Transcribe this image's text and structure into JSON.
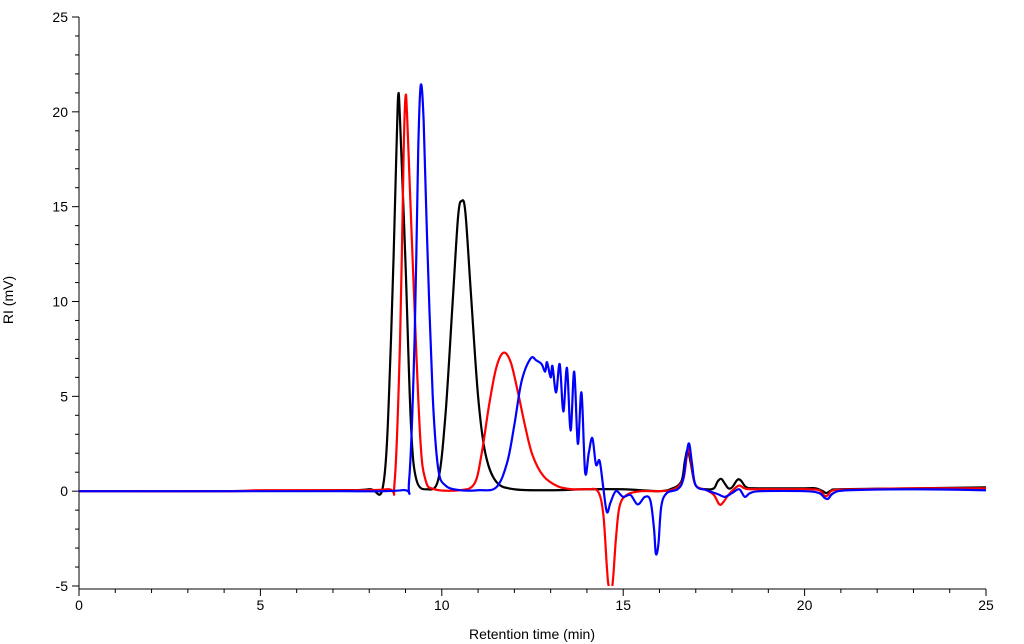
{
  "chart_data": {
    "type": "line",
    "title": "",
    "xlabel": "Retention time (min)",
    "ylabel": "RI (mV)",
    "xlim": [
      0,
      25
    ],
    "ylim": [
      -5,
      25
    ],
    "xticks": [
      0,
      5,
      10,
      15,
      20,
      25
    ],
    "yticks": [
      -5,
      0,
      5,
      10,
      15,
      20,
      25
    ],
    "grid": false,
    "legend": "none",
    "series": [
      {
        "color": "#000000",
        "points": [
          [
            0,
            0
          ],
          [
            4,
            0
          ],
          [
            7,
            0.05
          ],
          [
            8,
            0.1
          ],
          [
            8.4,
            0.5
          ],
          [
            8.6,
            8
          ],
          [
            8.75,
            18
          ],
          [
            8.8,
            20.9
          ],
          [
            8.85,
            19.5
          ],
          [
            9,
            12
          ],
          [
            9.15,
            3.5
          ],
          [
            9.3,
            0.6
          ],
          [
            9.6,
            0.1
          ],
          [
            9.9,
            0.6
          ],
          [
            10.1,
            4
          ],
          [
            10.3,
            10
          ],
          [
            10.45,
            14.5
          ],
          [
            10.55,
            15.3
          ],
          [
            10.65,
            14.7
          ],
          [
            10.8,
            10.5
          ],
          [
            11,
            5
          ],
          [
            11.2,
            2
          ],
          [
            11.5,
            0.5
          ],
          [
            12,
            0.1
          ],
          [
            13,
            0.05
          ],
          [
            14,
            0.1
          ],
          [
            15,
            0.1
          ],
          [
            15.5,
            0.05
          ],
          [
            16,
            0.0
          ],
          [
            16.3,
            0.1
          ],
          [
            16.6,
            0.5
          ],
          [
            16.7,
            1.6
          ],
          [
            16.78,
            2.2
          ],
          [
            16.86,
            1.5
          ],
          [
            17,
            0.3
          ],
          [
            17.3,
            0.1
          ],
          [
            17.5,
            0.15
          ],
          [
            17.6,
            0.5
          ],
          [
            17.7,
            0.65
          ],
          [
            17.8,
            0.4
          ],
          [
            17.9,
            0.15
          ],
          [
            18,
            0.2
          ],
          [
            18.15,
            0.6
          ],
          [
            18.25,
            0.55
          ],
          [
            18.4,
            0.2
          ],
          [
            18.7,
            0.15
          ],
          [
            20,
            0.15
          ],
          [
            20.3,
            0.15
          ],
          [
            20.5,
            0.0
          ],
          [
            20.6,
            -0.1
          ],
          [
            20.75,
            0.05
          ],
          [
            21,
            0.1
          ],
          [
            23,
            0.15
          ],
          [
            25,
            0.2
          ]
        ]
      },
      {
        "color": "#ff0000",
        "points": [
          [
            0,
            0
          ],
          [
            4,
            0
          ],
          [
            5,
            0.05
          ],
          [
            7,
            0.05
          ],
          [
            8.5,
            0.1
          ],
          [
            8.7,
            0.5
          ],
          [
            8.85,
            8
          ],
          [
            8.95,
            18
          ],
          [
            9.0,
            20.8
          ],
          [
            9.05,
            19.5
          ],
          [
            9.2,
            12
          ],
          [
            9.4,
            3
          ],
          [
            9.55,
            0.6
          ],
          [
            9.8,
            0.1
          ],
          [
            10.5,
            0.05
          ],
          [
            10.9,
            0.4
          ],
          [
            11.1,
            2
          ],
          [
            11.3,
            4.5
          ],
          [
            11.5,
            6.5
          ],
          [
            11.7,
            7.3
          ],
          [
            11.9,
            6.8
          ],
          [
            12.1,
            5.2
          ],
          [
            12.3,
            3.4
          ],
          [
            12.5,
            1.9
          ],
          [
            12.8,
            0.8
          ],
          [
            13.2,
            0.25
          ],
          [
            13.6,
            0.1
          ],
          [
            14,
            0.1
          ],
          [
            14.3,
            0.0
          ],
          [
            14.45,
            -1.2
          ],
          [
            14.55,
            -4
          ],
          [
            14.6,
            -5
          ],
          [
            14.7,
            -5
          ],
          [
            14.8,
            -2.5
          ],
          [
            14.9,
            -0.8
          ],
          [
            15.1,
            -0.2
          ],
          [
            15.5,
            0.0
          ],
          [
            16,
            0.0
          ],
          [
            16.4,
            0.1
          ],
          [
            16.65,
            0.6
          ],
          [
            16.75,
            1.8
          ],
          [
            16.82,
            2.2
          ],
          [
            16.9,
            1.2
          ],
          [
            17.0,
            0.3
          ],
          [
            17.3,
            0.05
          ],
          [
            17.5,
            -0.2
          ],
          [
            17.65,
            -0.7
          ],
          [
            17.75,
            -0.6
          ],
          [
            17.9,
            -0.2
          ],
          [
            18.05,
            0.1
          ],
          [
            18.2,
            0.3
          ],
          [
            18.35,
            0.15
          ],
          [
            18.6,
            0.1
          ],
          [
            20,
            0.1
          ],
          [
            20.4,
            0.05
          ],
          [
            20.55,
            -0.25
          ],
          [
            20.65,
            -0.2
          ],
          [
            20.8,
            0.05
          ],
          [
            21.5,
            0.1
          ],
          [
            23,
            0.15
          ],
          [
            25,
            0.15
          ]
        ]
      },
      {
        "color": "#0000ff",
        "points": [
          [
            0,
            0
          ],
          [
            4,
            0
          ],
          [
            7,
            0.0
          ],
          [
            8.9,
            0.05
          ],
          [
            9.1,
            0.6
          ],
          [
            9.25,
            8
          ],
          [
            9.35,
            18
          ],
          [
            9.42,
            21.4
          ],
          [
            9.5,
            19.5
          ],
          [
            9.6,
            13
          ],
          [
            9.75,
            5
          ],
          [
            9.9,
            1.2
          ],
          [
            10.1,
            0.3
          ],
          [
            10.5,
            0.05
          ],
          [
            11,
            0.05
          ],
          [
            11.5,
            0.2
          ],
          [
            11.8,
            1.5
          ],
          [
            12.0,
            3.5
          ],
          [
            12.2,
            5.8
          ],
          [
            12.45,
            7
          ],
          [
            12.6,
            6.9
          ],
          [
            12.75,
            6.7
          ],
          [
            12.85,
            6.3
          ],
          [
            12.9,
            6.8
          ],
          [
            13.0,
            6.0
          ],
          [
            13.05,
            6.6
          ],
          [
            13.15,
            5.2
          ],
          [
            13.25,
            6.7
          ],
          [
            13.35,
            4.2
          ],
          [
            13.45,
            6.5
          ],
          [
            13.55,
            3.2
          ],
          [
            13.65,
            6.3
          ],
          [
            13.75,
            2.5
          ],
          [
            13.85,
            5.2
          ],
          [
            13.95,
            1.0
          ],
          [
            14.05,
            2.0
          ],
          [
            14.15,
            2.8
          ],
          [
            14.25,
            1.4
          ],
          [
            14.35,
            1.6
          ],
          [
            14.45,
            0.2
          ],
          [
            14.55,
            -1.1
          ],
          [
            14.65,
            -0.6
          ],
          [
            14.8,
            0.0
          ],
          [
            15.0,
            -0.3
          ],
          [
            15.2,
            -0.2
          ],
          [
            15.4,
            -0.7
          ],
          [
            15.6,
            -0.3
          ],
          [
            15.75,
            -0.5
          ],
          [
            15.85,
            -2.0
          ],
          [
            15.9,
            -3.3
          ],
          [
            15.97,
            -2.8
          ],
          [
            16.05,
            -0.8
          ],
          [
            16.2,
            -0.1
          ],
          [
            16.5,
            0.1
          ],
          [
            16.65,
            0.6
          ],
          [
            16.75,
            2.0
          ],
          [
            16.82,
            2.5
          ],
          [
            16.9,
            1.4
          ],
          [
            17.0,
            0.3
          ],
          [
            17.3,
            0.05
          ],
          [
            17.6,
            -0.15
          ],
          [
            17.8,
            -0.3
          ],
          [
            18.0,
            -0.1
          ],
          [
            18.2,
            0.1
          ],
          [
            18.35,
            -0.3
          ],
          [
            18.5,
            -0.1
          ],
          [
            18.8,
            0.0
          ],
          [
            20,
            0.0
          ],
          [
            20.4,
            -0.1
          ],
          [
            20.55,
            -0.35
          ],
          [
            20.65,
            -0.4
          ],
          [
            20.8,
            -0.1
          ],
          [
            21.2,
            0.05
          ],
          [
            23,
            0.1
          ],
          [
            25,
            0.05
          ]
        ]
      }
    ]
  }
}
